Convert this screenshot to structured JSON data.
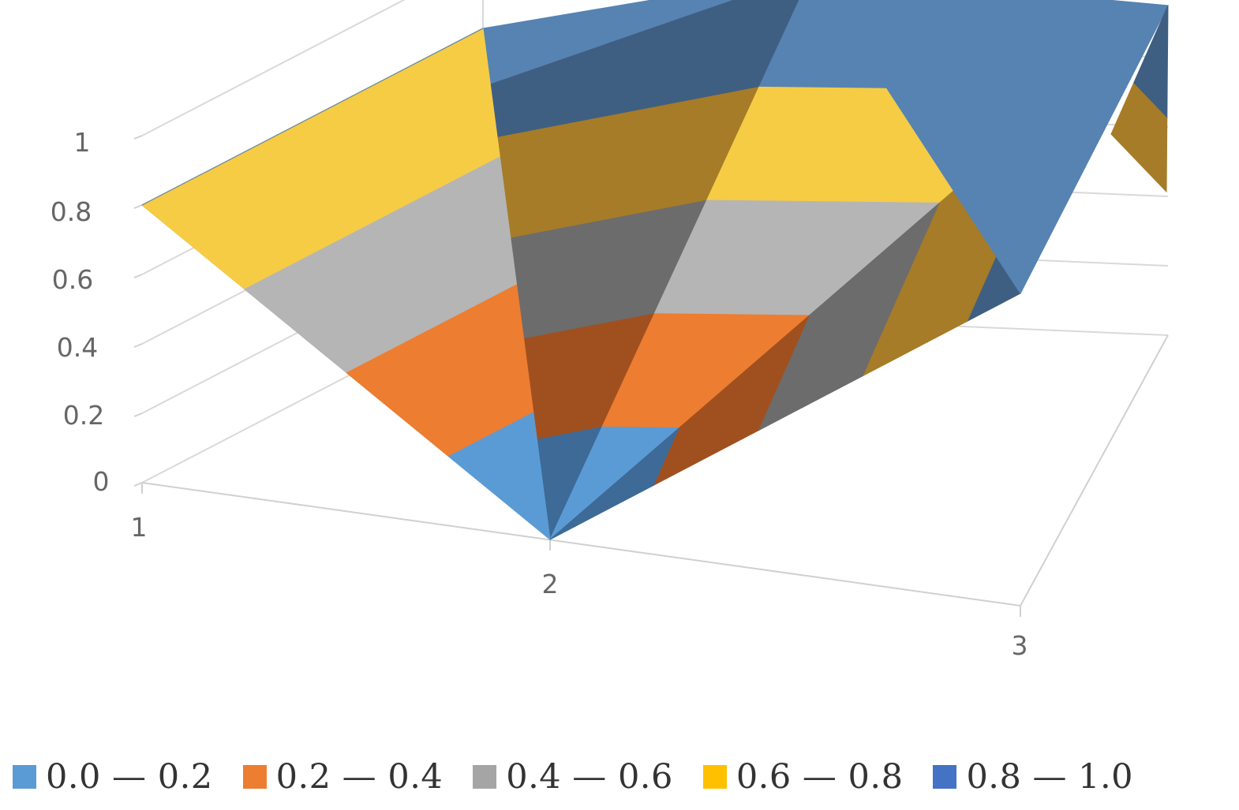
{
  "chart_data": {
    "type": "surface-3d",
    "x_categories": [
      "1",
      "2",
      "3"
    ],
    "z_tick_labels": [
      "0",
      "0.2",
      "0.4",
      "0.6",
      "0.8",
      "1"
    ],
    "zlim": [
      0,
      1
    ],
    "grid": true,
    "legend_position": "bottom",
    "series": [
      {
        "values": [
          0.8,
          1.0,
          0.95
        ]
      },
      {
        "values": [
          0.8,
          0.0,
          0.9
        ]
      }
    ],
    "bands": [
      {
        "label": "0.0 — 0.2",
        "color": "#5b9bd5"
      },
      {
        "label": "0.2 — 0.4",
        "color": "#ed7d31"
      },
      {
        "label": "0.4 — 0.6",
        "color": "#a5a5a5"
      },
      {
        "label": "0.6 — 0.8",
        "color": "#ffc000"
      },
      {
        "label": "0.8 — 1.0",
        "color": "#4472c4"
      }
    ]
  }
}
